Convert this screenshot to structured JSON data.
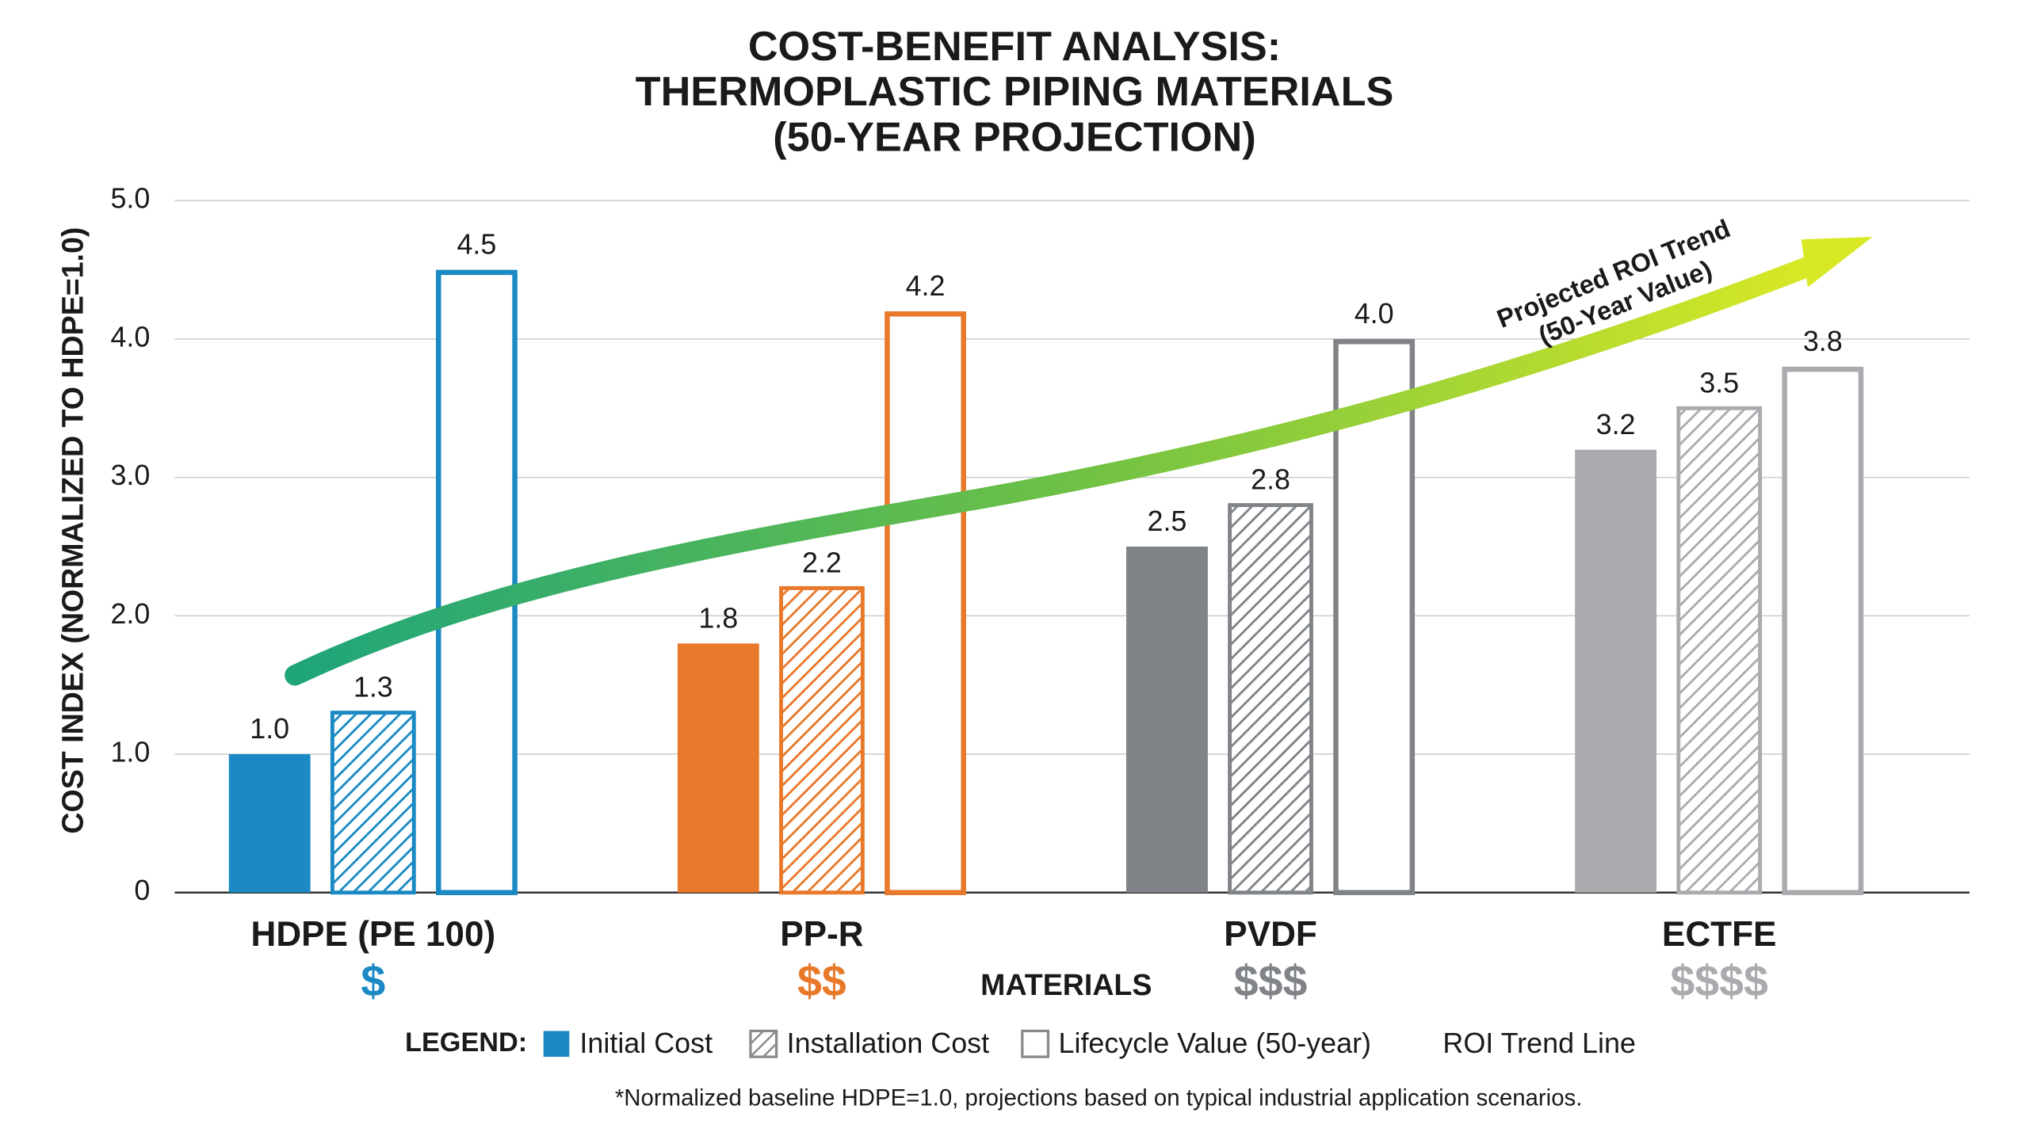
{
  "chart_data": {
    "type": "bar",
    "title": [
      "COST-BENEFIT ANALYSIS:",
      "THERMOPLASTIC PIPING MATERIALS",
      "(50-YEAR PROJECTION)"
    ],
    "y_label": "COST INDEX (NORMALIZED TO HDPE=1.0)",
    "x_label": "MATERIALS",
    "categories": [
      "HDPE (PE 100)",
      "PP-R",
      "PVDF",
      "ECTFE"
    ],
    "category_colors": [
      "#1b8ac4",
      "#e8792a",
      "#808387",
      "#a9abae"
    ],
    "cost_tiers": [
      "$",
      "$$",
      "$$$",
      "$$$$"
    ],
    "series": [
      {
        "name": "Initial Cost",
        "style": "solid",
        "color": "#1b8ac4",
        "values": [
          1.0,
          1.8,
          2.5,
          3.2
        ],
        "value_labels": [
          "1.0",
          "1.8",
          "2.5",
          "3.2"
        ]
      },
      {
        "name": "Installation Cost",
        "style": "hatched",
        "color": "#8a8a8a",
        "values": [
          1.3,
          2.2,
          2.8,
          3.5
        ],
        "value_labels": [
          "1.3",
          "2.2",
          "2.8",
          "3.5"
        ]
      },
      {
        "name": "Lifecycle Value (50-year)",
        "style": "outline",
        "color": "#8a8a8a",
        "values": [
          4.5,
          4.2,
          4.0,
          3.8
        ],
        "value_labels": [
          "4.5",
          "4.2",
          "4.0",
          "3.8"
        ]
      }
    ],
    "trend": {
      "name": "ROI Trend Line",
      "label": [
        "Projected ROI Trend",
        "(50-Year Value)"
      ]
    },
    "legend_title": "LEGEND:",
    "ylim": [
      0,
      5
    ],
    "yticks": [
      0,
      {
        "value": 1,
        "label": "1.0"
      },
      {
        "value": 2,
        "label": "2.0"
      },
      {
        "value": 3,
        "label": "3.0"
      },
      {
        "value": 4,
        "label": "4.0"
      },
      {
        "value": 5,
        "label": "5.0"
      }
    ],
    "grid": true,
    "footnote": "*Normalized baseline HDPE=1.0, projections based on typical industrial application scenarios."
  }
}
